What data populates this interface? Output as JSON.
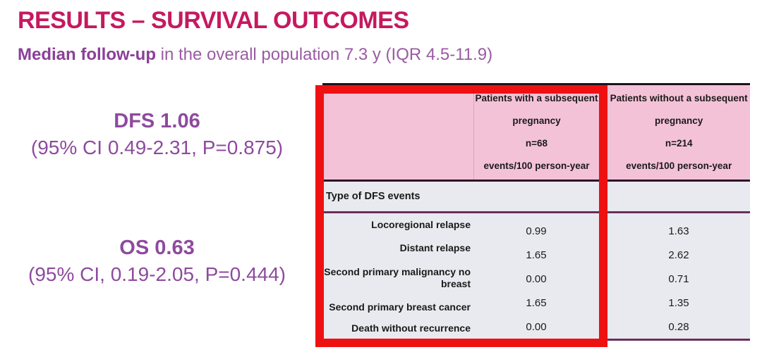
{
  "slide": {
    "title": "RESULTS – SURVIVAL OUTCOMES",
    "subtitle_bold": "Median follow-up",
    "subtitle_rest": " in the overall population 7.3 y (IQR 4.5-11.9)"
  },
  "stats": {
    "dfs": {
      "headline": "DFS 1.06",
      "detail": "(95% CI 0.49-2.31, P=0.875)"
    },
    "os": {
      "headline": "OS 0.63",
      "detail": "(95% CI, 0.19-2.05, P=0.444)"
    }
  },
  "table": {
    "columns": [
      {
        "text": "Patients with a subsequent\npregnancy\nn=68\nevents/100 person-year"
      },
      {
        "text": "Patients without a subsequent\npregnancy\nn=214\nevents/100 person-year"
      }
    ],
    "section_label": "Type of DFS events",
    "rows": [
      {
        "label": "Locoregional relapse",
        "with_pregnancy": "0.99",
        "without_pregnancy": "1.63"
      },
      {
        "label": "Distant relapse",
        "with_pregnancy": "1.65",
        "without_pregnancy": "2.62"
      },
      {
        "label": "Second primary malignancy no\nbreast",
        "with_pregnancy": "0.00",
        "without_pregnancy": "0.71"
      },
      {
        "label": "Second primary breast cancer",
        "with_pregnancy": "1.65",
        "without_pregnancy": "1.35"
      },
      {
        "label": "Death without recurrence",
        "with_pregnancy": "0.00",
        "without_pregnancy": "0.28"
      }
    ]
  },
  "colors": {
    "title": "#c5195f",
    "purple_text": "#8e4a9e",
    "header_pink": "#f4c2d7",
    "body_gray": "#e9eaef",
    "line_dark": "#2a152a",
    "line_purple": "#6b2e5e",
    "highlight_red": "#ee1111"
  }
}
